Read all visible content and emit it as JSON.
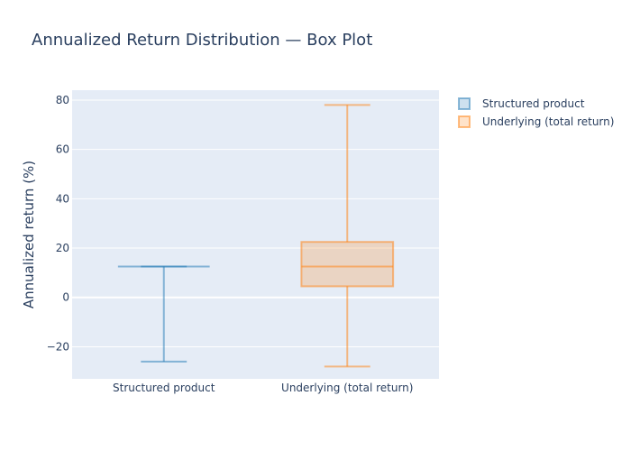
{
  "chart_data": {
    "type": "box",
    "title": "Annualized Return Distribution — Box Plot",
    "xlabel": "",
    "ylabel": "Annualized return (%)",
    "ylim": [
      -33,
      84
    ],
    "yticks": [
      -20,
      0,
      20,
      40,
      60,
      80
    ],
    "ytick_labels": [
      "−20",
      "0",
      "20",
      "40",
      "60",
      "80"
    ],
    "categories": [
      "Structured product",
      "Underlying (total return)"
    ],
    "grid": true,
    "legend_position": "top-right",
    "series": [
      {
        "name": "Structured product",
        "category": "Structured product",
        "min": -26,
        "q1": 12.5,
        "median": 12.5,
        "q3": 12.5,
        "max": 12.5,
        "color": "#1f77b4"
      },
      {
        "name": "Underlying (total return)",
        "category": "Underlying (total return)",
        "min": -28,
        "q1": 4.5,
        "median": 12.5,
        "q3": 22.5,
        "max": 78,
        "color": "#ff7f0e"
      }
    ]
  }
}
